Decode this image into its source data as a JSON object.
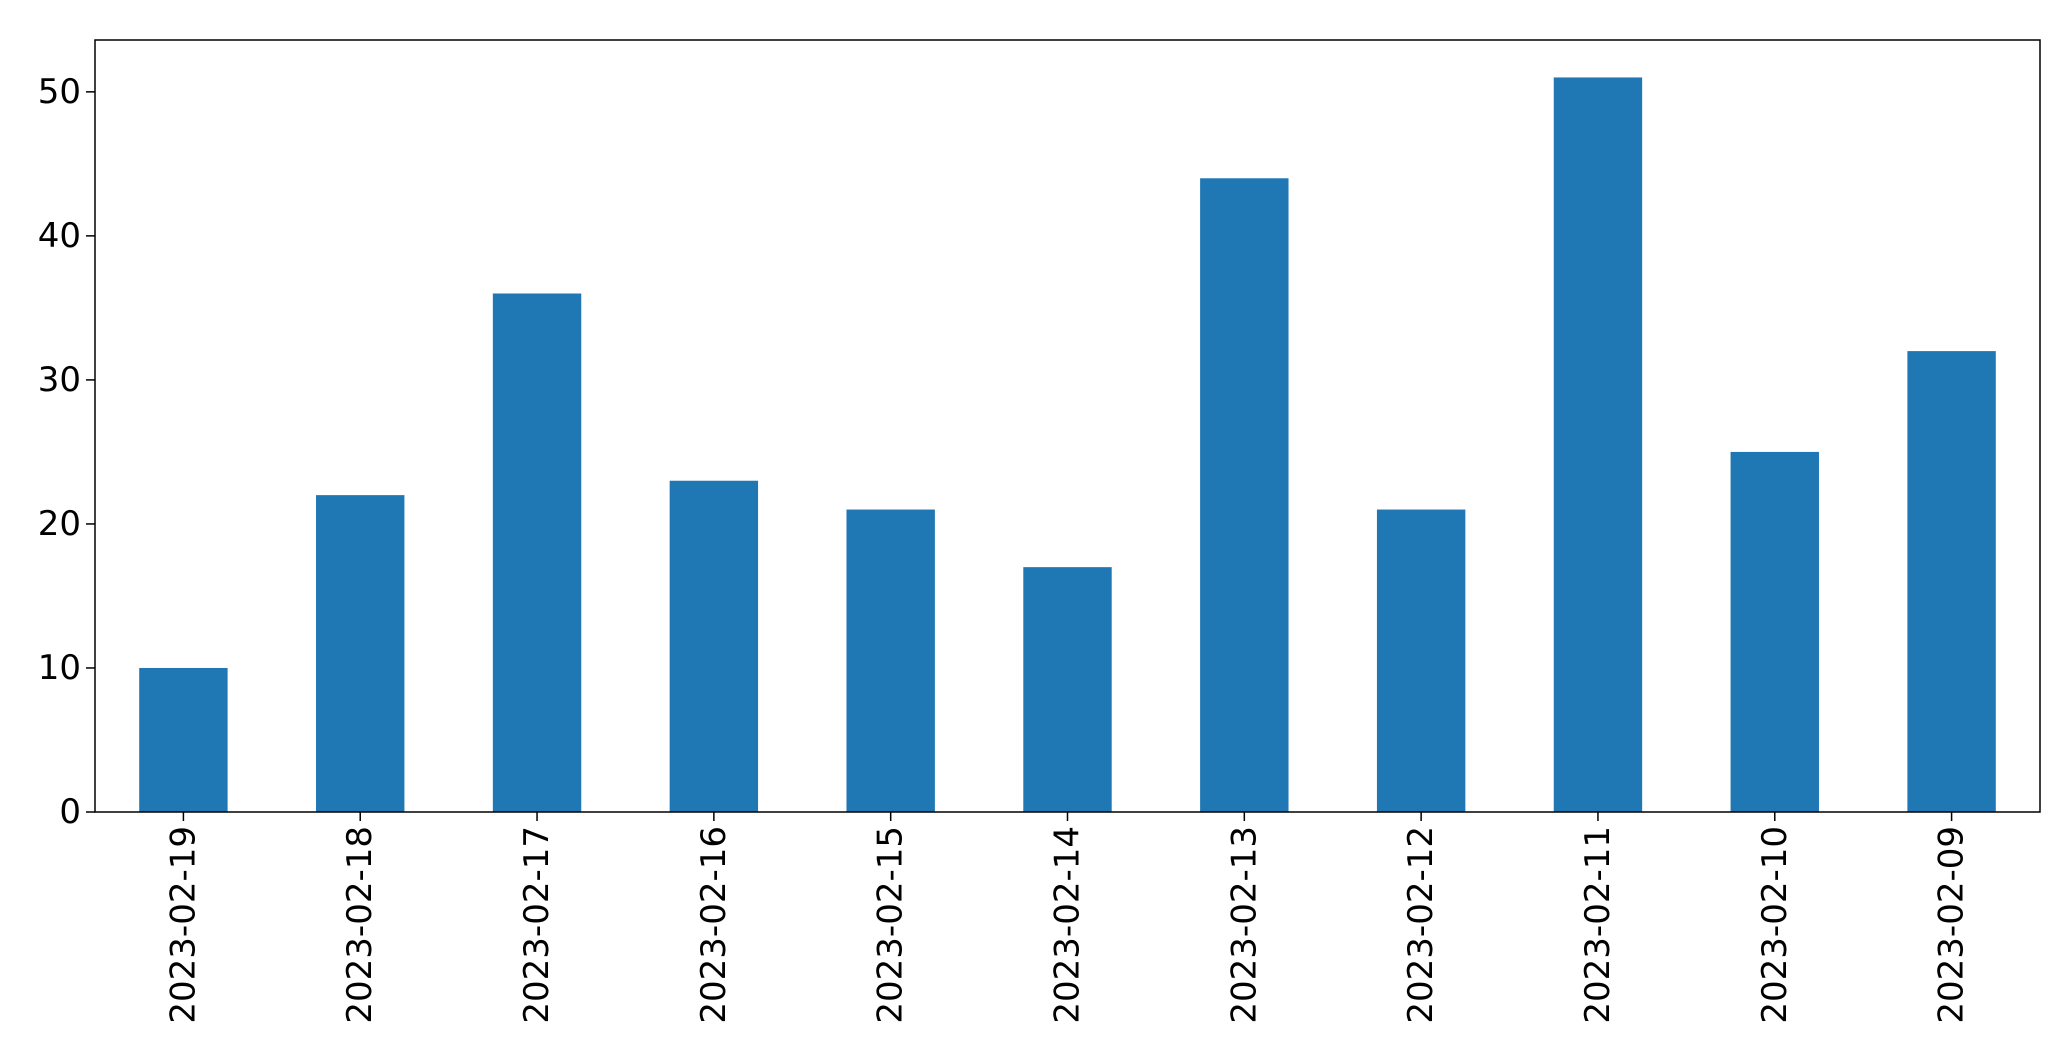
{
  "chart_data": {
    "type": "bar",
    "title": "",
    "xlabel": "",
    "ylabel": "",
    "categories": [
      "2023-02-19",
      "2023-02-18",
      "2023-02-17",
      "2023-02-16",
      "2023-02-15",
      "2023-02-14",
      "2023-02-13",
      "2023-02-12",
      "2023-02-11",
      "2023-02-10",
      "2023-02-09"
    ],
    "values": [
      10,
      22,
      36,
      23,
      21,
      17,
      44,
      21,
      51,
      25,
      32
    ],
    "ylim": [
      0,
      53.6
    ],
    "yticks": [
      0,
      10,
      20,
      30,
      40,
      50
    ],
    "grid": false,
    "legend": "none",
    "bar_color": "#1f77b4"
  }
}
